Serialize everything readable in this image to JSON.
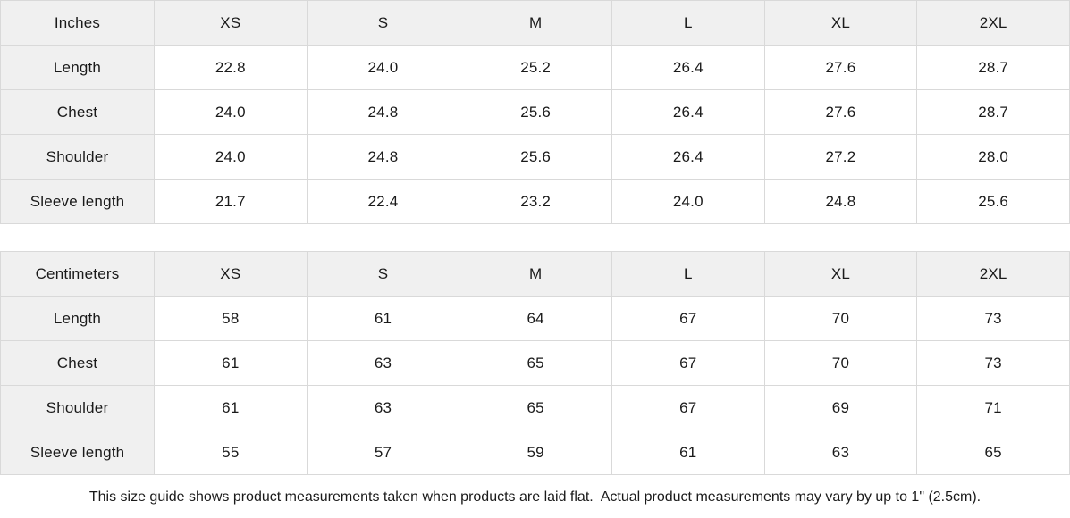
{
  "colors": {
    "header_bg": "#f0f0f0",
    "border": "#d9d9d9",
    "text": "#1a1a1a",
    "background": "#ffffff"
  },
  "tables": [
    {
      "unit_label": "Inches",
      "size_headers": [
        "XS",
        "S",
        "M",
        "L",
        "XL",
        "2XL"
      ],
      "rows": [
        {
          "label": "Length",
          "values": [
            "22.8",
            "24.0",
            "25.2",
            "26.4",
            "27.6",
            "28.7"
          ]
        },
        {
          "label": "Chest",
          "values": [
            "24.0",
            "24.8",
            "25.6",
            "26.4",
            "27.6",
            "28.7"
          ]
        },
        {
          "label": "Shoulder",
          "values": [
            "24.0",
            "24.8",
            "25.6",
            "26.4",
            "27.2",
            "28.0"
          ]
        },
        {
          "label": "Sleeve length",
          "values": [
            "21.7",
            "22.4",
            "23.2",
            "24.0",
            "24.8",
            "25.6"
          ]
        }
      ]
    },
    {
      "unit_label": "Centimeters",
      "size_headers": [
        "XS",
        "S",
        "M",
        "L",
        "XL",
        "2XL"
      ],
      "rows": [
        {
          "label": "Length",
          "values": [
            "58",
            "61",
            "64",
            "67",
            "70",
            "73"
          ]
        },
        {
          "label": "Chest",
          "values": [
            "61",
            "63",
            "65",
            "67",
            "70",
            "73"
          ]
        },
        {
          "label": "Shoulder",
          "values": [
            "61",
            "63",
            "65",
            "67",
            "69",
            "71"
          ]
        },
        {
          "label": "Sleeve length",
          "values": [
            "55",
            "57",
            "59",
            "61",
            "63",
            "65"
          ]
        }
      ]
    }
  ],
  "footer": {
    "note": "This size guide shows product measurements taken when products are laid flat.  Actual product measurements may vary by up to 1\" (2.5cm)."
  },
  "chart_data": [
    {
      "type": "table",
      "title": "Inches",
      "columns": [
        "XS",
        "S",
        "M",
        "L",
        "XL",
        "2XL"
      ],
      "row_labels": [
        "Length",
        "Chest",
        "Shoulder",
        "Sleeve length"
      ],
      "values": [
        [
          22.8,
          24.0,
          25.2,
          26.4,
          27.6,
          28.7
        ],
        [
          24.0,
          24.8,
          25.6,
          26.4,
          27.6,
          28.7
        ],
        [
          24.0,
          24.8,
          25.6,
          26.4,
          27.2,
          28.0
        ],
        [
          21.7,
          22.4,
          23.2,
          24.0,
          24.8,
          25.6
        ]
      ]
    },
    {
      "type": "table",
      "title": "Centimeters",
      "columns": [
        "XS",
        "S",
        "M",
        "L",
        "XL",
        "2XL"
      ],
      "row_labels": [
        "Length",
        "Chest",
        "Shoulder",
        "Sleeve length"
      ],
      "values": [
        [
          58,
          61,
          64,
          67,
          70,
          73
        ],
        [
          61,
          63,
          65,
          67,
          70,
          73
        ],
        [
          61,
          63,
          65,
          67,
          69,
          71
        ],
        [
          55,
          57,
          59,
          61,
          63,
          65
        ]
      ]
    }
  ]
}
